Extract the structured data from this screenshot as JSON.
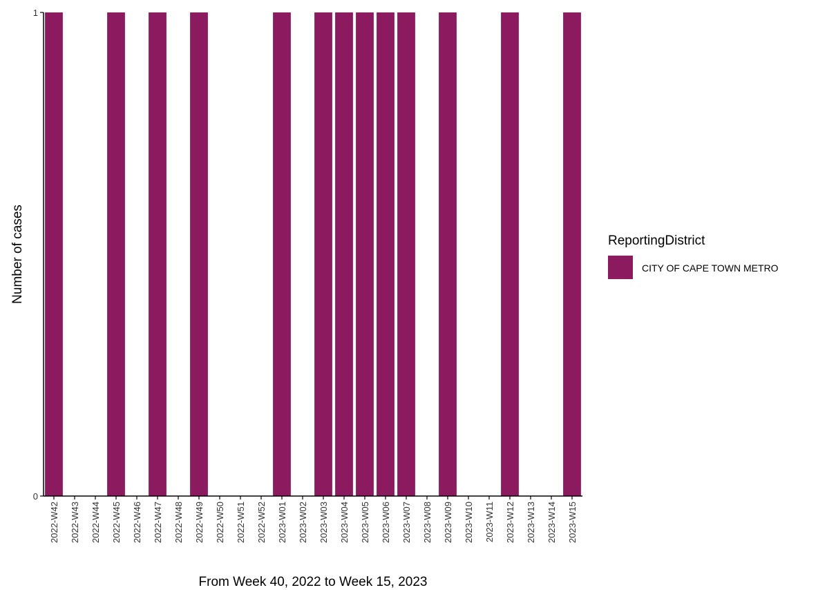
{
  "chart_data": {
    "type": "bar",
    "categories": [
      "2022-W42",
      "2022-W43",
      "2022-W44",
      "2022-W45",
      "2022-W46",
      "2022-W47",
      "2022-W48",
      "2022-W49",
      "2022-W50",
      "2022-W51",
      "2022-W52",
      "2023-W01",
      "2023-W02",
      "2023-W03",
      "2023-W04",
      "2023-W05",
      "2023-W06",
      "2023-W07",
      "2023-W08",
      "2023-W09",
      "2023-W10",
      "2023-W11",
      "2023-W12",
      "2023-W13",
      "2023-W14",
      "2023-W15"
    ],
    "series": [
      {
        "name": "CITY OF CAPE TOWN METRO",
        "color": "#8b1a5e",
        "values": [
          1,
          0,
          0,
          1,
          0,
          1,
          0,
          1,
          0,
          0,
          0,
          1,
          0,
          1,
          1,
          1,
          1,
          1,
          0,
          1,
          0,
          0,
          1,
          0,
          0,
          1
        ]
      }
    ],
    "xlabel": "From Week 40, 2022 to Week 15, 2023",
    "ylabel": "Number of cases",
    "ylim": [
      0,
      1
    ],
    "yticks": [
      0,
      1
    ],
    "legend": {
      "title": "ReportingDistrict",
      "placement": "right"
    },
    "grid": false
  }
}
